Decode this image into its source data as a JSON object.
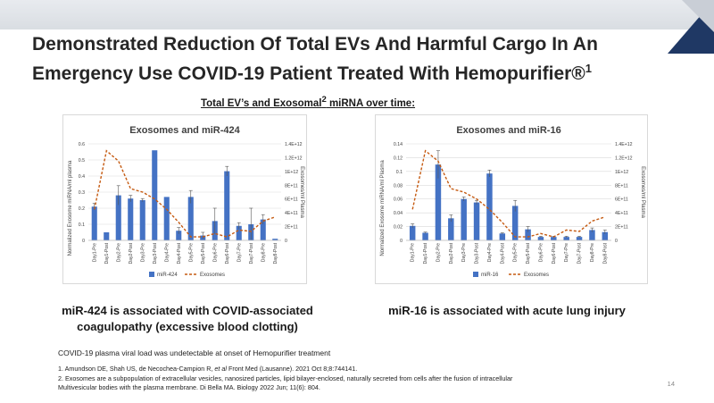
{
  "slide": {
    "title_main": "Demonstrated Reduction Of Total EVs And Harmful Cargo In An Emergency Use COVID-19 Patient Treated With Hemopurifier®",
    "title_sup": "1",
    "subtitle_pre": "Total EV’s and Exosomal",
    "subtitle_sup": "2",
    "subtitle_post": " miRNA over time:",
    "caption_left": "miR-424 is associated with COVID-associated coagulopathy (excessive blood clotting)",
    "caption_right": "miR-16 is associated with acute lung injury",
    "note": "COVID-19 plasma viral load was undetectable at onset of Hemopurifier treatment",
    "ref1_pre": "1. Amundson DE, Shah US, de Necochea-Campion R, ",
    "ref1_em": "et al",
    "ref1_post": " Front Med (Lausanne). 2021 Oct 8;8:744141.",
    "ref2_line1": "2. Exosomes are a subpopulation of extracellular vesicles, nanosized particles, lipid bilayer-enclosed, naturally secreted from cells after the fusion of intracellular",
    "ref2_line2": "Multivesicular bodies with the plasma membrane. Di Bella MA. Biology 2022 Jun; 11(6): 804.",
    "page_number": "14"
  },
  "colors": {
    "bar": "#4472c4",
    "line": "#c55a11",
    "grid": "#d9d9d9",
    "accent_navy": "#1f3864"
  },
  "chart_data": [
    {
      "type": "bar",
      "title": "Exosomes and miR-424",
      "categories": [
        "Day1-Pre",
        "Day1-Post",
        "Day2-Pre",
        "Day2-Post",
        "Day3-Pre",
        "Day3-Post",
        "Day4-Pre",
        "Day4-Post",
        "Day5-Pre",
        "Day5-Post",
        "Day6-Pre",
        "Day6-Post",
        "Day7-Pre",
        "Day7-Post",
        "Day8-Pre",
        "Day8-Post"
      ],
      "ylabel": "Normalized Exosome miRNA/ml plasma",
      "y2label": "Exosomes/ml Plasma",
      "ylim": [
        0,
        0.6
      ],
      "yticks": [
        "0",
        "0.1",
        "0.2",
        "0.3",
        "0.4",
        "0.5",
        "0.6"
      ],
      "y2lim": [
        0,
        1400000000000.0
      ],
      "y2ticks": [
        "0",
        "2E+11",
        "4E+11",
        "6E+11",
        "8E+11",
        "1E+12",
        "1.2E+12",
        "1.4E+12"
      ],
      "series": [
        {
          "name": "miR-424",
          "kind": "bar",
          "axis": "left",
          "values": [
            0.21,
            0.05,
            0.28,
            0.26,
            0.25,
            0.56,
            0.27,
            0.06,
            0.27,
            0.03,
            0.12,
            0.43,
            0.09,
            0.1,
            0.13,
            0.01
          ],
          "errors": [
            0.02,
            0.0,
            0.06,
            0.02,
            0.01,
            0.0,
            0.0,
            0.02,
            0.04,
            0.02,
            0.08,
            0.03,
            0.02,
            0.1,
            0.03,
            0.0
          ]
        },
        {
          "name": "Exosomes",
          "kind": "line",
          "axis": "right",
          "values": [
            450000000000.0,
            1300000000000.0,
            1150000000000.0,
            750000000000.0,
            700000000000.0,
            600000000000.0,
            450000000000.0,
            260000000000.0,
            50000000000.0,
            50000000000.0,
            100000000000.0,
            50000000000.0,
            150000000000.0,
            130000000000.0,
            280000000000.0,
            340000000000.0
          ]
        }
      ]
    },
    {
      "type": "bar",
      "title": "Exosomes and miR-16",
      "categories": [
        "Day1-Pre",
        "Day1-Post",
        "Day2-Pre",
        "Day2-Post",
        "Day3-Pre",
        "Day3-Post",
        "Day4-Pre",
        "Day4-Post",
        "Day5-Pre",
        "Day5-Post",
        "Day6-Pre",
        "Day6-Post",
        "Day7-Pre",
        "Day7-Post",
        "Day8-Pre",
        "Day8-Post"
      ],
      "ylabel": "Normalized Exosome miRNA/ml Plasma",
      "y2label": "Exosomes/ml Plasma",
      "ylim": [
        0,
        0.14
      ],
      "yticks": [
        "0",
        "0.02",
        "0.04",
        "0.06",
        "0.08",
        "0.1",
        "0.12",
        "0.14"
      ],
      "y2lim": [
        0,
        1400000000000.0
      ],
      "y2ticks": [
        "0",
        "2E+11",
        "4E+11",
        "6E+11",
        "8E+11",
        "1E+12",
        "1.2E+12",
        "1.4E+12"
      ],
      "series": [
        {
          "name": "miR-16",
          "kind": "bar",
          "axis": "left",
          "values": [
            0.021,
            0.011,
            0.11,
            0.032,
            0.06,
            0.055,
            0.097,
            0.01,
            0.05,
            0.016,
            0.005,
            0.005,
            0.005,
            0.005,
            0.015,
            0.012
          ],
          "errors": [
            0.003,
            0.001,
            0.02,
            0.005,
            0.003,
            0.003,
            0.005,
            0.001,
            0.008,
            0.004,
            0.001,
            0.001,
            0.001,
            0.001,
            0.003,
            0.003
          ]
        },
        {
          "name": "Exosomes",
          "kind": "line",
          "axis": "right",
          "values": [
            450000000000.0,
            1300000000000.0,
            1150000000000.0,
            750000000000.0,
            700000000000.0,
            600000000000.0,
            450000000000.0,
            260000000000.0,
            50000000000.0,
            50000000000.0,
            100000000000.0,
            50000000000.0,
            150000000000.0,
            130000000000.0,
            280000000000.0,
            340000000000.0
          ]
        }
      ]
    }
  ]
}
